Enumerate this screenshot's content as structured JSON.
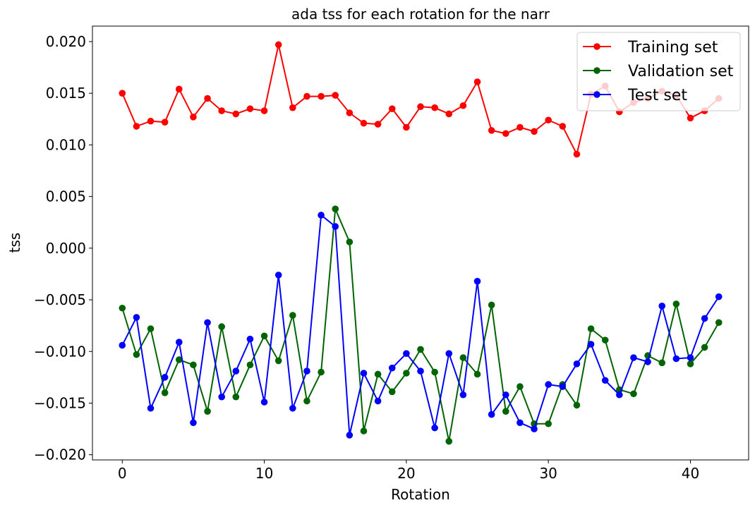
{
  "chart_data": {
    "type": "line",
    "title": "ada tss for each rotation for the narr",
    "xlabel": "Rotation",
    "ylabel": "tss",
    "xlim": [
      -2.1,
      44.1
    ],
    "ylim": [
      -0.0205,
      0.0215
    ],
    "xticks": [
      0,
      10,
      20,
      30,
      40
    ],
    "xtick_labels": [
      "0",
      "10",
      "20",
      "30",
      "40"
    ],
    "yticks": [
      -0.02,
      -0.015,
      -0.01,
      -0.005,
      0.0,
      0.005,
      0.01,
      0.015,
      0.02
    ],
    "ytick_labels": [
      "−0.020",
      "−0.015",
      "−0.010",
      "−0.005",
      "0.000",
      "0.005",
      "0.010",
      "0.015",
      "0.020"
    ],
    "grid": false,
    "legend_position": "top-right",
    "x": [
      0,
      1,
      2,
      3,
      4,
      5,
      6,
      7,
      8,
      9,
      10,
      11,
      12,
      13,
      14,
      15,
      16,
      17,
      18,
      19,
      20,
      21,
      22,
      23,
      24,
      25,
      26,
      27,
      28,
      29,
      30,
      31,
      32,
      33,
      34,
      35,
      36,
      37,
      38,
      39,
      40,
      41,
      42
    ],
    "series": [
      {
        "name": "Training set",
        "color": "#ff0000",
        "values": [
          0.015,
          0.0118,
          0.0123,
          0.0122,
          0.0154,
          0.0127,
          0.0145,
          0.0133,
          0.013,
          0.0135,
          0.0133,
          0.0197,
          0.0136,
          0.0147,
          0.0147,
          0.0148,
          0.0131,
          0.0121,
          0.012,
          0.0135,
          0.0117,
          0.0137,
          0.0136,
          0.013,
          0.0138,
          0.0161,
          0.0114,
          0.0111,
          0.0117,
          0.0113,
          0.0124,
          0.0118,
          0.0091,
          0.0149,
          0.0157,
          0.0132,
          0.0141,
          0.0145,
          0.0152,
          0.0148,
          0.0126,
          0.0133,
          0.0145
        ]
      },
      {
        "name": "Validation set",
        "color": "#006400",
        "values": [
          -0.0058,
          -0.0103,
          -0.0078,
          -0.014,
          -0.0108,
          -0.0113,
          -0.0158,
          -0.0076,
          -0.0144,
          -0.0113,
          -0.0085,
          -0.0109,
          -0.0065,
          -0.0148,
          -0.012,
          0.0038,
          0.0006,
          -0.0177,
          -0.0122,
          -0.0139,
          -0.0121,
          -0.0098,
          -0.012,
          -0.0187,
          -0.0106,
          -0.0122,
          -0.0055,
          -0.0158,
          -0.0134,
          -0.017,
          -0.017,
          -0.0132,
          -0.0152,
          -0.0078,
          -0.0089,
          -0.0137,
          -0.0141,
          -0.0104,
          -0.0111,
          -0.0054,
          -0.0112,
          -0.0096,
          -0.0072
        ]
      },
      {
        "name": "Test set",
        "color": "#0000ff",
        "values": [
          -0.0094,
          -0.0067,
          -0.0155,
          -0.0125,
          -0.0091,
          -0.0169,
          -0.0072,
          -0.0144,
          -0.0119,
          -0.0088,
          -0.0149,
          -0.0026,
          -0.0155,
          -0.0119,
          0.0032,
          0.0021,
          -0.0181,
          -0.0121,
          -0.0148,
          -0.0116,
          -0.0102,
          -0.0119,
          -0.0174,
          -0.0102,
          -0.0142,
          -0.0032,
          -0.0161,
          -0.0142,
          -0.0169,
          -0.0175,
          -0.0132,
          -0.0134,
          -0.0112,
          -0.0093,
          -0.0128,
          -0.0142,
          -0.0106,
          -0.011,
          -0.0056,
          -0.0107,
          -0.0106,
          -0.0068,
          -0.0047
        ]
      }
    ]
  }
}
